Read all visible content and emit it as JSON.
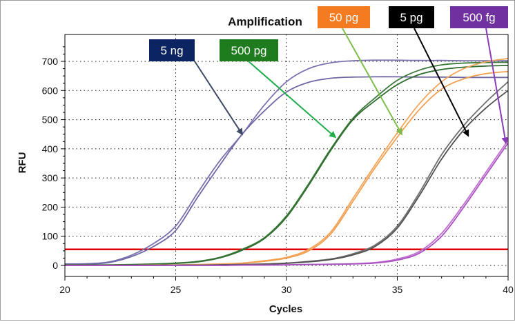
{
  "chart_data": {
    "type": "line",
    "title": "Amplification",
    "xlabel": "Cycles",
    "ylabel": "RFU",
    "xlim": [
      20,
      40
    ],
    "ylim": [
      -20,
      770
    ],
    "xticks": [
      20,
      25,
      30,
      35,
      40
    ],
    "yticks": [
      0,
      100,
      200,
      300,
      400,
      500,
      600,
      700
    ],
    "grid": "dotted",
    "threshold": {
      "value": 55,
      "color": "#e00000"
    },
    "annotations": [
      {
        "label": "5 ng",
        "color": "#0c2461",
        "target": [
          28,
          450
        ]
      },
      {
        "label": "500 pg",
        "color": "#1e7b1e",
        "target": [
          32.2,
          440
        ]
      },
      {
        "label": "50 pg",
        "color": "#f47b20",
        "target": [
          35.2,
          450
        ]
      },
      {
        "label": "5 pg",
        "color": "#000000",
        "target": [
          38.2,
          445
        ]
      },
      {
        "label": "500 fg",
        "color": "#7030a0",
        "target": [
          39.9,
          420
        ]
      }
    ],
    "series": [
      {
        "color": "#7a72b0",
        "x": [
          20,
          21,
          22,
          23,
          24,
          25,
          26,
          27,
          28,
          29,
          30,
          31,
          32,
          33,
          34,
          35,
          36,
          37,
          38,
          39,
          40
        ],
        "y": [
          5,
          6,
          12,
          35,
          75,
          135,
          250,
          360,
          450,
          550,
          630,
          675,
          695,
          702,
          704,
          704,
          703,
          703,
          702,
          702,
          702
        ]
      },
      {
        "color": "#6d67a5",
        "x": [
          20,
          21,
          22,
          23,
          24,
          25,
          26,
          27,
          28,
          29,
          30,
          31,
          32,
          33,
          34,
          35,
          36,
          37,
          38,
          39,
          40
        ],
        "y": [
          4,
          5,
          10,
          30,
          65,
          120,
          235,
          345,
          450,
          530,
          595,
          628,
          642,
          646,
          647,
          647,
          646,
          646,
          645,
          645,
          645
        ]
      },
      {
        "color": "#3b7a3b",
        "x": [
          20,
          21,
          22,
          23,
          24,
          25,
          26,
          27,
          28,
          29,
          30,
          31,
          32,
          33,
          34,
          35,
          36,
          37,
          38,
          39,
          40
        ],
        "y": [
          2,
          2,
          2,
          3,
          5,
          8,
          14,
          28,
          55,
          95,
          170,
          280,
          400,
          505,
          575,
          635,
          670,
          688,
          694,
          696,
          697
        ]
      },
      {
        "color": "#2f6e2f",
        "x": [
          20,
          21,
          22,
          23,
          24,
          25,
          26,
          27,
          28,
          29,
          30,
          31,
          32,
          33,
          34,
          35,
          36,
          37,
          38,
          39,
          40
        ],
        "y": [
          1,
          1,
          1,
          2,
          4,
          7,
          12,
          26,
          52,
          92,
          165,
          275,
          395,
          500,
          565,
          620,
          655,
          672,
          680,
          684,
          686
        ]
      },
      {
        "color": "#f5a55a",
        "x": [
          20,
          21,
          22,
          23,
          24,
          25,
          26,
          27,
          28,
          29,
          30,
          31,
          32,
          33,
          34,
          35,
          36,
          37,
          38,
          39,
          40
        ],
        "y": [
          0,
          0,
          0,
          0,
          1,
          2,
          3,
          5,
          8,
          16,
          28,
          55,
          115,
          230,
          345,
          455,
          555,
          630,
          675,
          698,
          710
        ]
      },
      {
        "color": "#f0a050",
        "x": [
          20,
          21,
          22,
          23,
          24,
          25,
          26,
          27,
          28,
          29,
          30,
          31,
          32,
          33,
          34,
          35,
          36,
          37,
          38,
          39,
          40
        ],
        "y": [
          0,
          0,
          0,
          0,
          1,
          1,
          2,
          4,
          7,
          14,
          25,
          50,
          108,
          220,
          335,
          440,
          535,
          605,
          640,
          658,
          665
        ]
      },
      {
        "color": "#707070",
        "x": [
          20,
          21,
          22,
          23,
          24,
          25,
          26,
          27,
          28,
          29,
          30,
          31,
          32,
          33,
          34,
          35,
          36,
          37,
          38,
          39,
          40
        ],
        "y": [
          0,
          0,
          0,
          0,
          0,
          1,
          1,
          2,
          3,
          5,
          8,
          14,
          22,
          40,
          70,
          135,
          250,
          380,
          480,
          560,
          630
        ]
      },
      {
        "color": "#505050",
        "x": [
          20,
          21,
          22,
          23,
          24,
          25,
          26,
          27,
          28,
          29,
          30,
          31,
          32,
          33,
          34,
          35,
          36,
          37,
          38,
          39,
          40
        ],
        "y": [
          0,
          0,
          0,
          0,
          0,
          1,
          1,
          2,
          3,
          4,
          7,
          12,
          20,
          36,
          65,
          128,
          240,
          365,
          465,
          540,
          600
        ]
      },
      {
        "color": "#c070d0",
        "x": [
          20,
          21,
          22,
          23,
          24,
          25,
          26,
          27,
          28,
          29,
          30,
          31,
          32,
          33,
          34,
          35,
          36,
          37,
          38,
          39,
          40
        ],
        "y": [
          0,
          0,
          0,
          0,
          0,
          0,
          0,
          0,
          1,
          1,
          2,
          3,
          4,
          6,
          10,
          22,
          48,
          110,
          210,
          320,
          430
        ]
      },
      {
        "color": "#a850c0",
        "x": [
          20,
          21,
          22,
          23,
          24,
          25,
          26,
          27,
          28,
          29,
          30,
          31,
          32,
          33,
          34,
          35,
          36,
          37,
          38,
          39,
          40
        ],
        "y": [
          0,
          0,
          0,
          0,
          0,
          0,
          0,
          0,
          1,
          1,
          2,
          3,
          4,
          5,
          8,
          18,
          42,
          100,
          200,
          310,
          420
        ]
      }
    ]
  }
}
